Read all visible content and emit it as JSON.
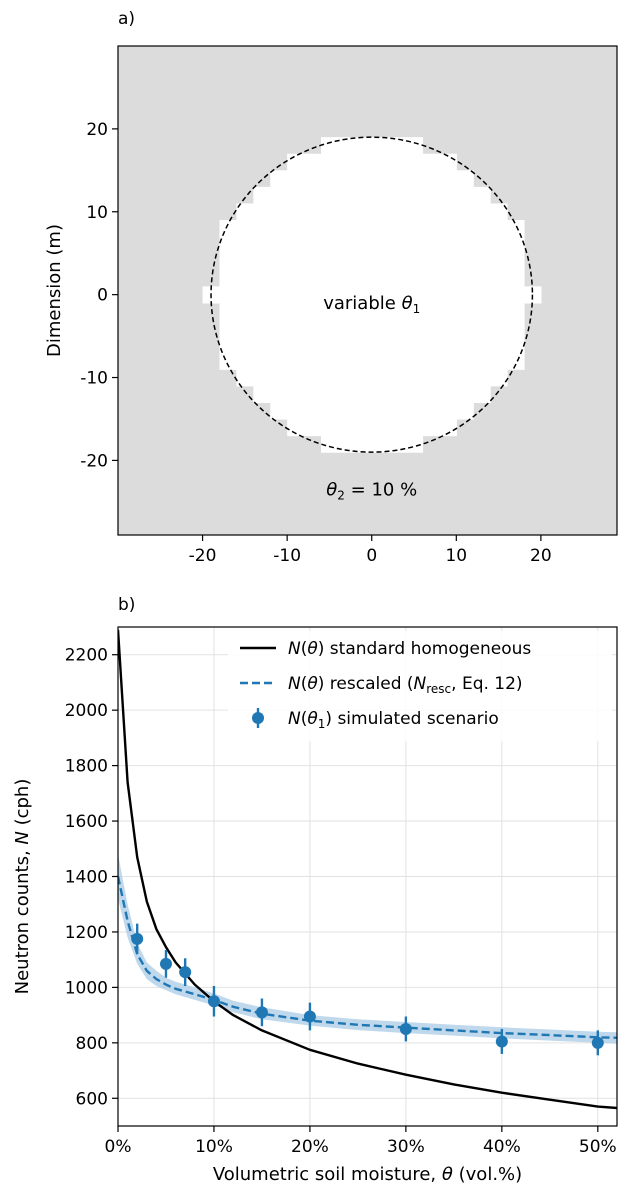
{
  "chart_data": [
    {
      "type": "heatmap",
      "panel_label": "a)",
      "ylabel": "Dimension (m)",
      "xlabel": "",
      "xlim": [
        -30,
        29
      ],
      "ylim": [
        -29,
        30
      ],
      "x_ticks": [
        -20,
        -10,
        0,
        10,
        20
      ],
      "x_tick_labels": [
        "-20",
        "-10",
        "0",
        "10",
        "20"
      ],
      "y_ticks": [
        20,
        10,
        0,
        -10,
        -20
      ],
      "y_tick_labels": [
        "20",
        "10",
        "0",
        "-10",
        "-20"
      ],
      "background_fill": "#dcdcdc",
      "inner_fill": "#ffffff",
      "circle": {
        "center": [
          0,
          0
        ],
        "radius": 19
      },
      "inner_label": {
        "text": "variable ",
        "symbol": "θ",
        "subscript": "1",
        "x": 0,
        "y": -1
      },
      "outer_label": {
        "symbol": "θ",
        "subscript": "2",
        "text": " = 10 %",
        "x": 0,
        "y": -23.5
      }
    },
    {
      "type": "line",
      "panel_label": "b)",
      "xlabel": {
        "text": "Volumetric soil moisture, ",
        "symbol": "θ",
        "after": " (vol.%)"
      },
      "ylabel": {
        "text": "Neutron counts, ",
        "symbol": "N",
        "after": " (cph)"
      },
      "xlim": [
        0,
        52
      ],
      "ylim": [
        500,
        2300
      ],
      "x_ticks": [
        0,
        10,
        20,
        30,
        40,
        50
      ],
      "x_tick_labels": [
        "0%",
        "10%",
        "20%",
        "30%",
        "40%",
        "50%"
      ],
      "y_ticks": [
        600,
        800,
        1000,
        1200,
        1400,
        1600,
        1800,
        2000,
        2200
      ],
      "y_tick_labels": [
        "600",
        "800",
        "1000",
        "1200",
        "1400",
        "1600",
        "1800",
        "2000",
        "2200"
      ],
      "grid": true,
      "legend_position": "top-right",
      "series": [
        {
          "legend_label": {
            "sym": "N",
            "arg": "θ",
            "rest": " standard homogeneous"
          },
          "style": "solid",
          "color": "#000000",
          "x": [
            0,
            1,
            2,
            3,
            4,
            5,
            6,
            7,
            8,
            10,
            12,
            15,
            20,
            25,
            30,
            35,
            40,
            45,
            50,
            52
          ],
          "y": [
            2290,
            1740,
            1470,
            1310,
            1210,
            1145,
            1090,
            1050,
            1010,
            950,
            900,
            845,
            775,
            725,
            685,
            650,
            620,
            595,
            570,
            565
          ]
        },
        {
          "legend_label": {
            "sym": "N",
            "arg": "θ",
            "rest": " rescaled (",
            "sub_sym": "N",
            "sub": "resc",
            "tail": ", Eq. 12)"
          },
          "style": "dashed",
          "color": "#1f77b4",
          "band_color": "#a9cbe6",
          "x": [
            0,
            1,
            2,
            3,
            4,
            5,
            6,
            7,
            8,
            10,
            12,
            15,
            20,
            25,
            30,
            35,
            40,
            45,
            50,
            52
          ],
          "y": [
            1400,
            1240,
            1120,
            1060,
            1030,
            1010,
            995,
            985,
            975,
            955,
            930,
            905,
            880,
            865,
            855,
            845,
            835,
            828,
            820,
            818
          ],
          "band_lower": [
            1320,
            1180,
            1085,
            1030,
            1005,
            990,
            975,
            965,
            955,
            935,
            910,
            885,
            862,
            846,
            835,
            826,
            816,
            808,
            800,
            797
          ],
          "band_upper": [
            1480,
            1300,
            1160,
            1090,
            1060,
            1035,
            1020,
            1010,
            1000,
            978,
            952,
            928,
            900,
            885,
            875,
            865,
            856,
            848,
            840,
            838
          ]
        },
        {
          "legend_label": {
            "sym": "N",
            "arg": "θ",
            "arg_sub": "1",
            "rest": " simulated scenario"
          },
          "style": "errorbar",
          "color": "#1f77b4",
          "x": [
            2,
            5,
            7,
            10,
            15,
            20,
            30,
            40,
            50
          ],
          "y": [
            1175,
            1085,
            1055,
            950,
            910,
            895,
            850,
            805,
            800
          ],
          "yerr": [
            55,
            50,
            50,
            55,
            50,
            50,
            45,
            45,
            45
          ]
        }
      ]
    }
  ]
}
